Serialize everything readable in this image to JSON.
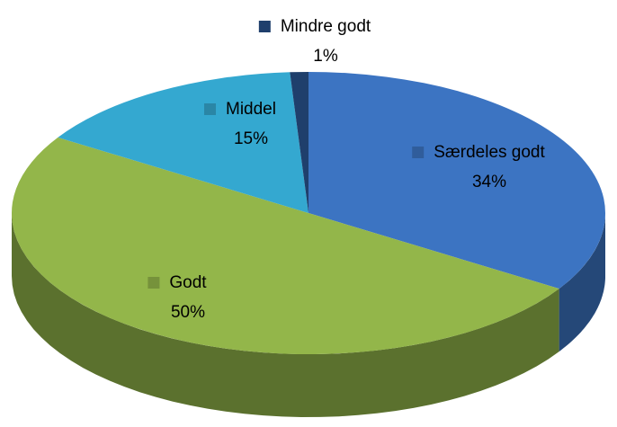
{
  "chart_data": {
    "type": "pie",
    "categories": [
      "Særdeles godt",
      "Godt",
      "Middel",
      "Mindre godt"
    ],
    "values": [
      34,
      50,
      15,
      1
    ],
    "value_labels": [
      "34%",
      "50%",
      "15%",
      "1%"
    ],
    "colors": [
      "#3c74c2",
      "#93b64a",
      "#34a8d0",
      "#1f3f6c"
    ]
  }
}
